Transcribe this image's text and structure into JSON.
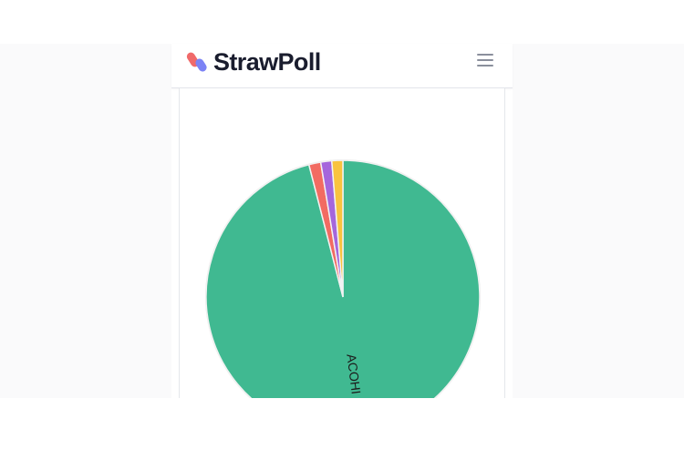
{
  "app": {
    "name": "StrawPoll",
    "brand_colors": {
      "logo_top": "#f06a6a",
      "logo_bottom": "#7c83f5",
      "text": "#1a1d2e"
    },
    "menu_icon": "hamburger-menu-icon"
  },
  "chart_data": {
    "type": "pie",
    "title": "",
    "slices": [
      {
        "label": "ACOHI",
        "percent": 96.0,
        "color": "#40b991"
      },
      {
        "label": "",
        "percent": 1.4,
        "color": "#f26b62"
      },
      {
        "label": "",
        "percent": 1.3,
        "color": "#a566dc"
      },
      {
        "label": "",
        "percent": 1.3,
        "color": "#f9c33f"
      }
    ],
    "start_angle_deg": 0,
    "direction": "counterclockwise",
    "legend": "none"
  }
}
